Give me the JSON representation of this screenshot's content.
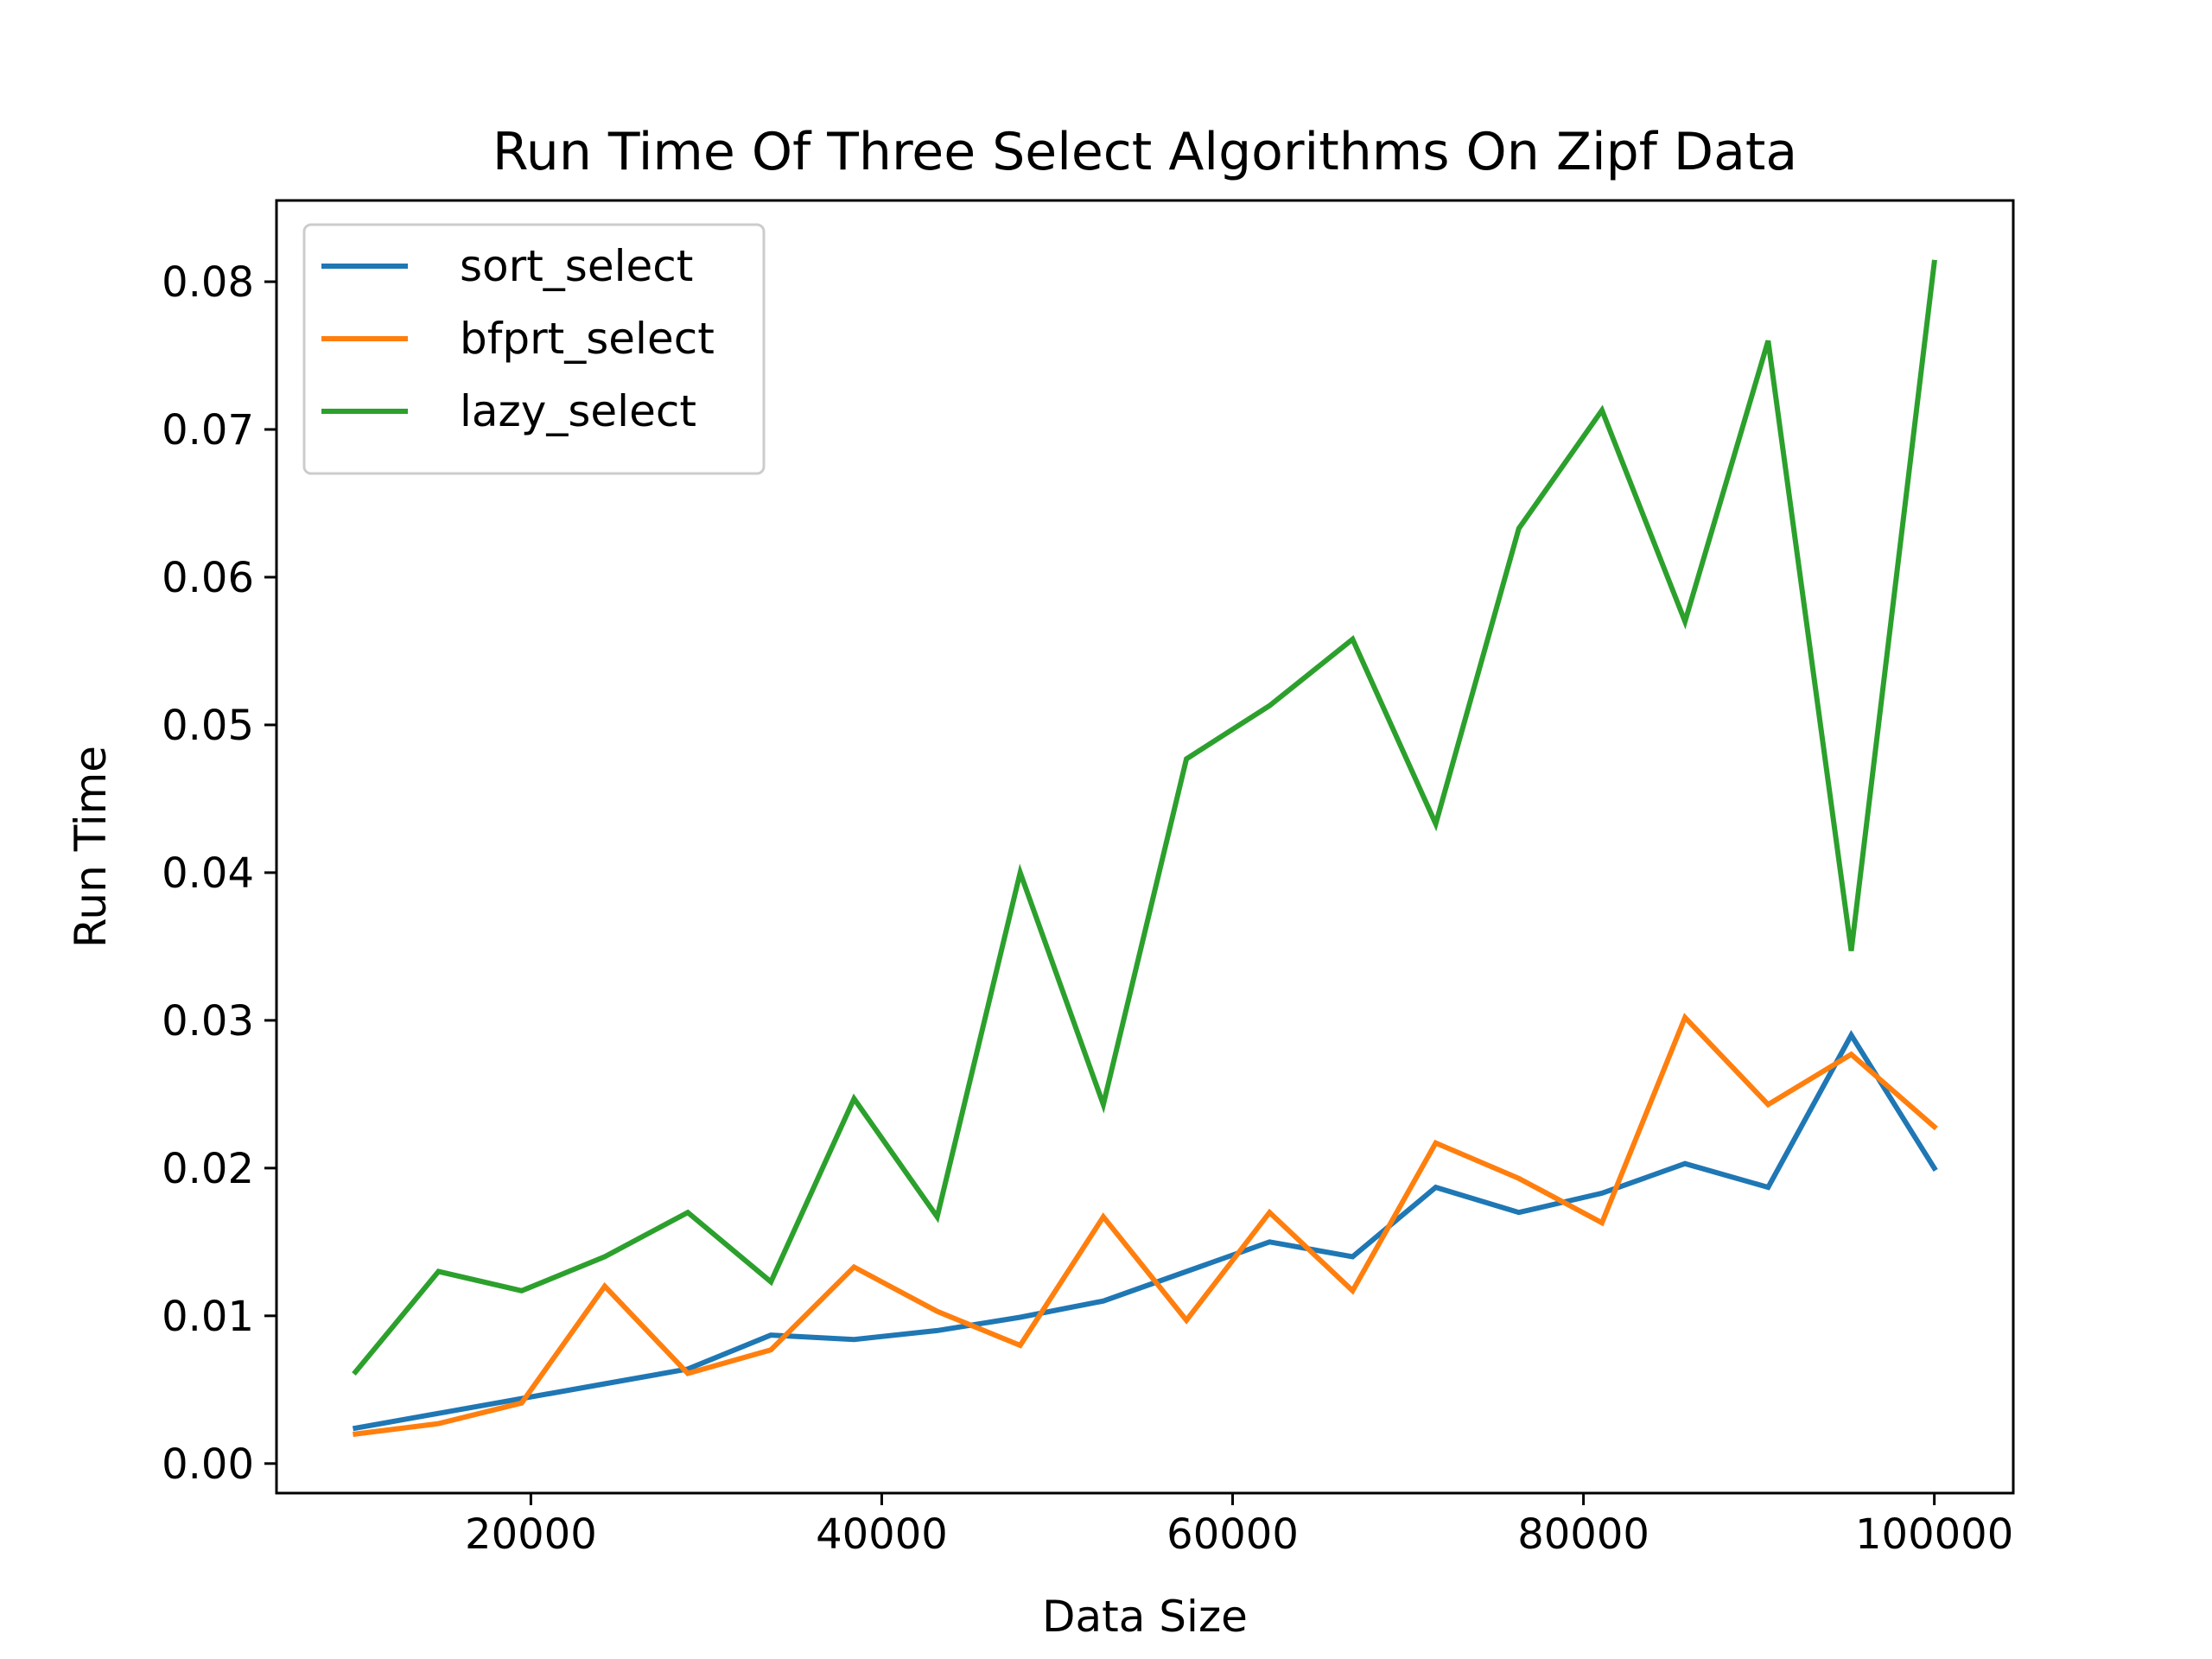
{
  "chart_data": {
    "type": "line",
    "title": "Run Time Of Three Select Algorithms On Zipf Data",
    "xlabel": "Data Size",
    "ylabel": "Run Time",
    "xlim": [
      5500,
      104500
    ],
    "ylim": [
      -0.002,
      0.0855
    ],
    "xticks": [
      20000,
      40000,
      60000,
      80000,
      100000
    ],
    "xtick_labels": [
      "20000",
      "40000",
      "60000",
      "80000",
      "100000"
    ],
    "yticks": [
      0.0,
      0.01,
      0.02,
      0.03,
      0.04,
      0.05,
      0.06,
      0.07,
      0.08
    ],
    "ytick_labels": [
      "0.00",
      "0.01",
      "0.02",
      "0.03",
      "0.04",
      "0.05",
      "0.06",
      "0.07",
      "0.08"
    ],
    "grid": false,
    "legend_position": "top-left",
    "x": [
      10000,
      14737,
      19474,
      24211,
      28947,
      33684,
      38421,
      43158,
      47895,
      52632,
      57368,
      62105,
      66842,
      71579,
      76316,
      81053,
      85789,
      90526,
      95263,
      100000
    ],
    "series": [
      {
        "name": "sort_select",
        "color": "#1f77b4",
        "values": [
          0.0024,
          0.0034,
          0.0044,
          0.0054,
          0.0064,
          0.0087,
          0.0084,
          0.009,
          0.0099,
          0.011,
          0.013,
          0.015,
          0.014,
          0.0187,
          0.017,
          0.0183,
          0.0203,
          0.0187,
          0.029,
          0.02
        ]
      },
      {
        "name": "bfprt_select",
        "color": "#ff7f0e",
        "values": [
          0.002,
          0.0027,
          0.0041,
          0.012,
          0.0061,
          0.0077,
          0.0133,
          0.0103,
          0.008,
          0.0167,
          0.0097,
          0.017,
          0.0117,
          0.0217,
          0.0193,
          0.0163,
          0.0302,
          0.0243,
          0.0277,
          0.0228
        ]
      },
      {
        "name": "lazy_select",
        "color": "#2ca02c",
        "values": [
          0.0062,
          0.013,
          0.0117,
          0.014,
          0.017,
          0.0123,
          0.0247,
          0.0167,
          0.04,
          0.0243,
          0.0477,
          0.0513,
          0.0558,
          0.0433,
          0.0633,
          0.0713,
          0.057,
          0.076,
          0.0347,
          0.0813
        ]
      }
    ]
  }
}
